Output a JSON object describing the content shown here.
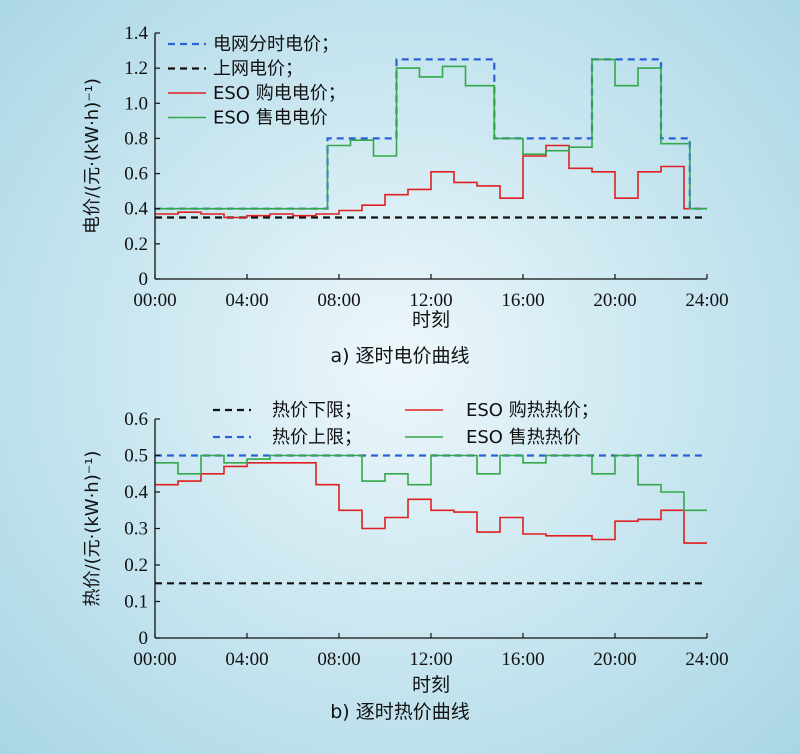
{
  "chart_data": [
    {
      "type": "line",
      "caption": "a) 逐时电价曲线",
      "xlabel": "时刻",
      "ylabel": "电价/(元·(kW·h)⁻¹)",
      "xlim": [
        0,
        24
      ],
      "ylim": [
        0,
        1.4
      ],
      "xticks": [
        "00:00",
        "04:00",
        "08:00",
        "12:00",
        "16:00",
        "20:00",
        "24:00"
      ],
      "yticks": [
        "0",
        "0.2",
        "0.4",
        "0.6",
        "0.8",
        "1.0",
        "1.2",
        "1.4"
      ],
      "legend_position": "top-left",
      "series": [
        {
          "name": "电网分时电价；",
          "style": "dashed",
          "color": "#2b62d9",
          "x": [
            0,
            7.5,
            10.5,
            14.75,
            19,
            22,
            23.25,
            24
          ],
          "y": [
            0.4,
            0.8,
            1.25,
            0.8,
            1.25,
            0.8,
            0.4,
            0.4
          ]
        },
        {
          "name": "上网电价；",
          "style": "dashed",
          "color": "#111111",
          "x": [
            0,
            24
          ],
          "y": [
            0.35,
            0.35
          ]
        },
        {
          "name": "ESO 购电电价；",
          "style": "solid",
          "color": "#e02020",
          "x": [
            0,
            1,
            2,
            3,
            4,
            5,
            6,
            7,
            8,
            9,
            10,
            11,
            12,
            13,
            14,
            15,
            16,
            17,
            18,
            19,
            20,
            21,
            22,
            23,
            24
          ],
          "y": [
            0.37,
            0.38,
            0.37,
            0.35,
            0.36,
            0.37,
            0.36,
            0.37,
            0.39,
            0.42,
            0.48,
            0.51,
            0.61,
            0.55,
            0.53,
            0.46,
            0.7,
            0.76,
            0.63,
            0.61,
            0.46,
            0.61,
            0.64,
            0.4,
            0.4
          ]
        },
        {
          "name": "ESO 售电电价",
          "style": "solid",
          "color": "#34a84a",
          "x": [
            0,
            1,
            2,
            3,
            4,
            5,
            6,
            7,
            7.5,
            8.5,
            9.5,
            10.5,
            11.5,
            12.5,
            13.5,
            14.75,
            16,
            17,
            18,
            19,
            20,
            21,
            22,
            23.25,
            24
          ],
          "y": [
            0.4,
            0.4,
            0.4,
            0.4,
            0.4,
            0.4,
            0.4,
            0.4,
            0.76,
            0.79,
            0.7,
            1.2,
            1.15,
            1.21,
            1.1,
            0.8,
            0.71,
            0.73,
            0.75,
            1.25,
            1.1,
            1.2,
            0.77,
            0.4,
            0.4
          ]
        }
      ]
    },
    {
      "type": "line",
      "caption": "b) 逐时热价曲线",
      "xlabel": "时刻",
      "ylabel": "热价/(元·(kW·h)⁻¹)",
      "xlim": [
        0,
        24
      ],
      "ylim": [
        0,
        0.6
      ],
      "xticks": [
        "00:00",
        "04:00",
        "08:00",
        "12:00",
        "16:00",
        "20:00",
        "24:00"
      ],
      "yticks": [
        "0",
        "0.1",
        "0.2",
        "0.3",
        "0.4",
        "0.5",
        "0.6"
      ],
      "legend_position": "top",
      "series": [
        {
          "name": "热价下限；",
          "style": "dashed",
          "color": "#111111",
          "x": [
            0,
            24
          ],
          "y": [
            0.15,
            0.15
          ]
        },
        {
          "name": "ESO 购热热价；",
          "style": "solid",
          "color": "#e02020",
          "x": [
            0,
            1,
            2,
            3,
            4,
            5,
            6,
            7,
            8,
            9,
            10,
            11,
            12,
            13,
            14,
            15,
            16,
            17,
            18,
            19,
            20,
            21,
            22,
            23,
            24
          ],
          "y": [
            0.42,
            0.43,
            0.45,
            0.47,
            0.48,
            0.48,
            0.48,
            0.42,
            0.35,
            0.3,
            0.33,
            0.38,
            0.35,
            0.345,
            0.29,
            0.33,
            0.285,
            0.28,
            0.28,
            0.27,
            0.32,
            0.325,
            0.35,
            0.26,
            0.26
          ]
        },
        {
          "name": "热价上限；",
          "style": "dashed",
          "color": "#2b62d9",
          "x": [
            0,
            24
          ],
          "y": [
            0.5,
            0.5
          ]
        },
        {
          "name": "ESO 售热热价",
          "style": "solid",
          "color": "#34a84a",
          "x": [
            0,
            1,
            2,
            3,
            4,
            5,
            6,
            7,
            8,
            9,
            10,
            11,
            12,
            13,
            14,
            15,
            16,
            17,
            18,
            19,
            20,
            21,
            22,
            23,
            24
          ],
          "y": [
            0.48,
            0.45,
            0.5,
            0.48,
            0.49,
            0.5,
            0.5,
            0.5,
            0.5,
            0.43,
            0.45,
            0.42,
            0.5,
            0.5,
            0.45,
            0.5,
            0.48,
            0.5,
            0.5,
            0.45,
            0.5,
            0.42,
            0.4,
            0.35,
            0.35
          ]
        }
      ]
    }
  ]
}
